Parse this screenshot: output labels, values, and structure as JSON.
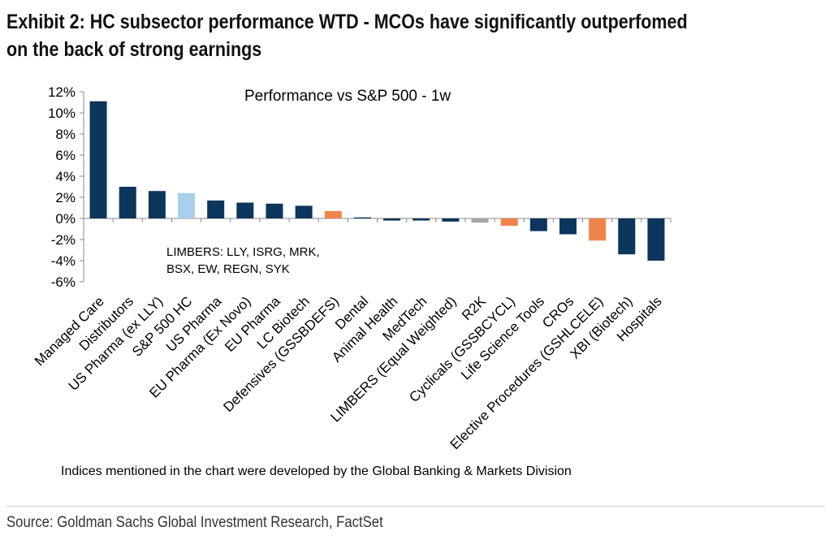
{
  "header": {
    "title": "Exhibit 2: HC subsector performance WTD - MCOs have significantly outperfomed on the back of strong earnings"
  },
  "footer": {
    "note": "Indices mentioned in the chart were developed by the Global Banking & Markets Division",
    "source": "Source: Goldman Sachs Global Investment Research, FactSet"
  },
  "colors": {
    "navy": "#0c365c",
    "orange": "#f0854a",
    "light_blue": "#a9cfea",
    "gray": "#a6a6a6"
  },
  "chart_data": {
    "type": "bar",
    "title": "Performance vs S&P 500 - 1w",
    "annotation": "LIMBERS: LLY, ISRG, MRK,\nBSX, EW, REGN, SYK",
    "xlabel": "",
    "ylabel": "",
    "ylim": [
      -6,
      12
    ],
    "yticks": [
      -6,
      -4,
      -2,
      0,
      2,
      4,
      6,
      8,
      10,
      12
    ],
    "ytick_format": "percent",
    "grid": false,
    "categories": [
      "Managed Care",
      "Distributors",
      "US Pharma (ex LLY)",
      "S&P 500 HC",
      "US Pharma",
      "EU Pharma (Ex Novo)",
      "EU Pharma",
      "LC Biotech",
      "Defensives (GSSBDEFS)",
      "Dental",
      "Animal Health",
      "MedTech",
      "LIMBERS (Equal Weighted)",
      "R2K",
      "Cyclicals (GSSBCYCL)",
      "Life Science Tools",
      "CROs",
      "Elective Procedures (GSHLCELE)",
      "XBI (Biotech)",
      "Hospitals"
    ],
    "values": [
      11.1,
      3.0,
      2.6,
      2.4,
      1.7,
      1.5,
      1.4,
      1.2,
      0.7,
      0.1,
      -0.2,
      -0.2,
      -0.3,
      -0.4,
      -0.7,
      -1.2,
      -1.5,
      -2.1,
      -3.4,
      -4.0
    ],
    "bar_colors": [
      "navy",
      "navy",
      "navy",
      "light_blue",
      "navy",
      "navy",
      "navy",
      "navy",
      "orange",
      "navy",
      "navy",
      "navy",
      "navy",
      "gray",
      "orange",
      "navy",
      "navy",
      "orange",
      "navy",
      "navy"
    ]
  }
}
